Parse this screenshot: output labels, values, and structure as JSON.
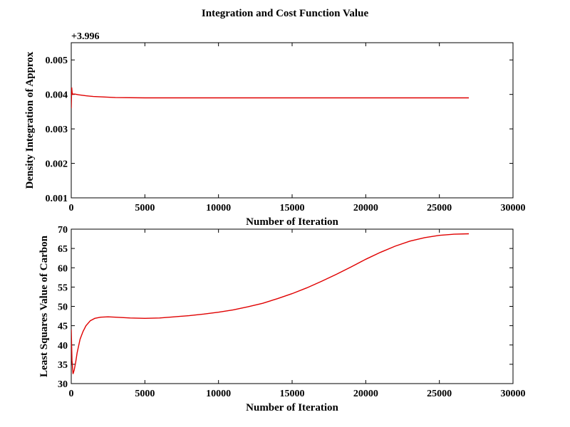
{
  "figure": {
    "title": "Integration and Cost Function Value"
  },
  "chart_data": [
    {
      "type": "line",
      "xlabel": "Number of Iteration",
      "ylabel": "Density Integration of Approx",
      "y_offset_label": "+3.996",
      "xlim": [
        0,
        30000
      ],
      "ylim": [
        0.001,
        0.0055
      ],
      "x_ticks": [
        "0",
        "5000",
        "10000",
        "15000",
        "20000",
        "25000",
        "30000"
      ],
      "y_ticks": [
        "0.001",
        "0.002",
        "0.003",
        "0.004",
        "0.005"
      ],
      "line_color": "#e00000",
      "grid": false,
      "series": [
        {
          "x": [
            0,
            30,
            60,
            100,
            150,
            250,
            500,
            1000,
            1500,
            2000,
            3000,
            5000,
            8000,
            12000,
            16000,
            20000,
            24000,
            27000
          ],
          "y": [
            0.0036,
            0.0042,
            0.00405,
            0.004,
            0.00401,
            0.00401,
            0.00399,
            0.00396,
            0.00394,
            0.00393,
            0.00391,
            0.0039,
            0.0039,
            0.0039,
            0.0039,
            0.0039,
            0.0039,
            0.0039
          ]
        }
      ]
    },
    {
      "type": "line",
      "xlabel": "Number of Iteration",
      "ylabel": "Least Squares Value of Carbon",
      "xlim": [
        0,
        30000
      ],
      "ylim": [
        30,
        70
      ],
      "x_ticks": [
        "0",
        "5000",
        "10000",
        "15000",
        "20000",
        "25000",
        "30000"
      ],
      "y_ticks": [
        "30",
        "35",
        "40",
        "45",
        "50",
        "55",
        "60",
        "65",
        "70"
      ],
      "line_color": "#e00000",
      "grid": false,
      "series": [
        {
          "x": [
            0,
            50,
            120,
            200,
            300,
            400,
            600,
            800,
            1000,
            1300,
            1600,
            2000,
            2500,
            3000,
            4000,
            5000,
            6000,
            7000,
            8000,
            9000,
            10000,
            11000,
            12000,
            13000,
            14000,
            15000,
            16000,
            17000,
            18000,
            19000,
            20000,
            21000,
            22000,
            23000,
            24000,
            25000,
            26000,
            27000
          ],
          "y": [
            44,
            36,
            32.5,
            33.5,
            35.5,
            38,
            41.5,
            43.5,
            45,
            46.3,
            46.9,
            47.2,
            47.3,
            47.2,
            47.0,
            46.9,
            47.0,
            47.3,
            47.6,
            48.0,
            48.5,
            49.1,
            49.9,
            50.8,
            52.0,
            53.3,
            54.8,
            56.5,
            58.3,
            60.2,
            62.2,
            64.0,
            65.6,
            66.9,
            67.8,
            68.4,
            68.7,
            68.8
          ]
        }
      ]
    }
  ]
}
